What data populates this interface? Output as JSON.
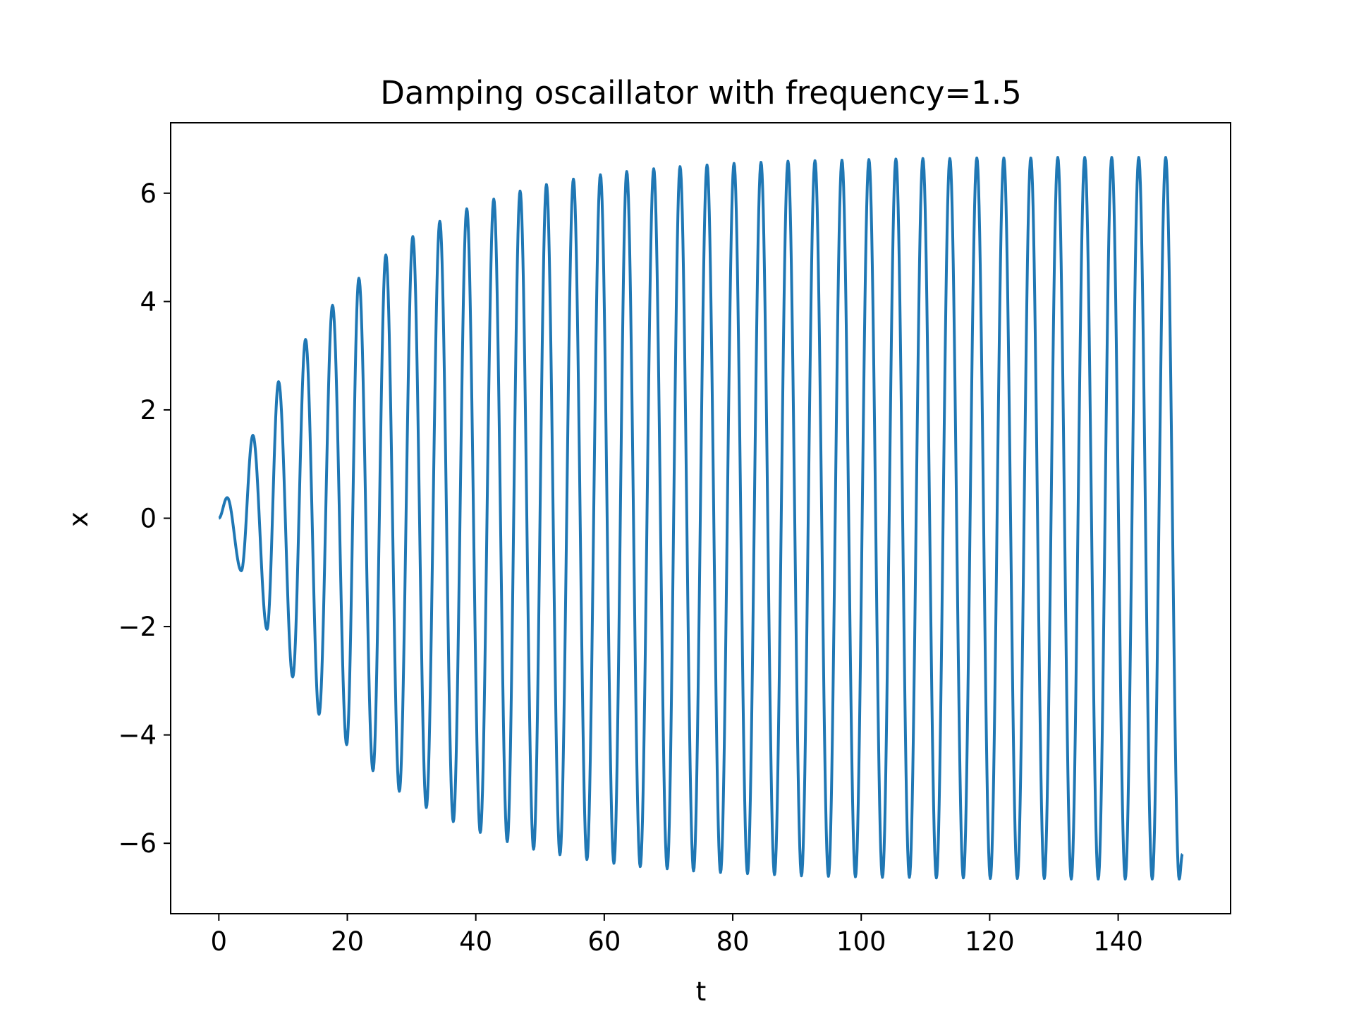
{
  "chart_data": {
    "type": "line",
    "title": "Damping oscaillator with frequency=1.5",
    "xlabel": "t",
    "ylabel": "x",
    "xlim": [
      -7.5,
      157.5
    ],
    "ylim": [
      -7.3,
      7.3
    ],
    "grid": false,
    "legend": "none",
    "xticks": [
      0,
      20,
      40,
      60,
      80,
      100,
      120,
      140
    ],
    "xtick_labels": [
      "0",
      "20",
      "40",
      "60",
      "80",
      "100",
      "120",
      "140"
    ],
    "yticks": [
      -6,
      -4,
      -2,
      0,
      2,
      4,
      6
    ],
    "ytick_labels": [
      "−6",
      "−4",
      "−2",
      "0",
      "2",
      "4",
      "6"
    ],
    "series": [
      {
        "color": "#1f77b4",
        "t_range": [
          0,
          150
        ],
        "extrema": [
          [
            0.0,
            0.0
          ],
          [
            1.3,
            0.38
          ],
          [
            3.5,
            -0.97
          ],
          [
            5.3,
            1.53
          ],
          [
            7.5,
            -2.05
          ],
          [
            9.3,
            2.52
          ],
          [
            11.5,
            -2.93
          ],
          [
            13.5,
            3.3
          ],
          [
            15.6,
            -3.62
          ],
          [
            17.7,
            3.93
          ],
          [
            19.9,
            -4.18
          ],
          [
            21.8,
            4.43
          ],
          [
            24.0,
            -4.66
          ],
          [
            26.0,
            4.86
          ],
          [
            28.1,
            -5.04
          ],
          [
            30.2,
            5.2
          ],
          [
            32.3,
            -5.34
          ],
          [
            34.4,
            5.48
          ],
          [
            36.5,
            -5.6
          ],
          [
            38.6,
            5.71
          ],
          [
            40.7,
            -5.8
          ],
          [
            42.8,
            5.89
          ],
          [
            44.9,
            -5.97
          ],
          [
            46.9,
            6.04
          ],
          [
            49.0,
            -6.11
          ],
          [
            51.0,
            6.16
          ],
          [
            53.1,
            -6.21
          ],
          [
            55.2,
            6.26
          ],
          [
            57.3,
            -6.3
          ],
          [
            59.4,
            6.34
          ],
          [
            61.5,
            -6.37
          ],
          [
            63.5,
            6.4
          ],
          [
            65.6,
            -6.43
          ],
          [
            67.7,
            6.45
          ],
          [
            69.8,
            -6.47
          ],
          [
            71.8,
            6.49
          ],
          [
            73.9,
            -6.51
          ],
          [
            76.0,
            6.52
          ],
          [
            78.1,
            -6.54
          ],
          [
            80.2,
            6.55
          ],
          [
            82.3,
            -6.56
          ],
          [
            84.4,
            6.57
          ],
          [
            86.5,
            -6.58
          ],
          [
            88.6,
            6.59
          ],
          [
            90.7,
            -6.6
          ],
          [
            92.8,
            6.6
          ],
          [
            94.9,
            -6.61
          ],
          [
            97.0,
            6.61
          ],
          [
            99.1,
            -6.62
          ],
          [
            101.2,
            6.62
          ],
          [
            103.3,
            -6.63
          ],
          [
            105.4,
            6.63
          ],
          [
            107.5,
            -6.63
          ],
          [
            109.6,
            6.64
          ],
          [
            111.7,
            -6.64
          ],
          [
            113.8,
            6.64
          ],
          [
            115.9,
            -6.64
          ],
          [
            118.0,
            6.65
          ],
          [
            120.1,
            -6.65
          ],
          [
            122.2,
            6.65
          ],
          [
            124.3,
            -6.65
          ],
          [
            126.4,
            6.65
          ],
          [
            128.5,
            -6.65
          ],
          [
            130.6,
            6.66
          ],
          [
            132.7,
            -6.66
          ],
          [
            134.8,
            6.66
          ],
          [
            136.9,
            -6.66
          ],
          [
            139.0,
            6.66
          ],
          [
            141.1,
            -6.66
          ],
          [
            143.2,
            6.66
          ],
          [
            145.3,
            -6.66
          ],
          [
            147.4,
            6.66
          ],
          [
            149.5,
            -6.66
          ],
          [
            150.0,
            -6.2
          ]
        ]
      }
    ]
  }
}
